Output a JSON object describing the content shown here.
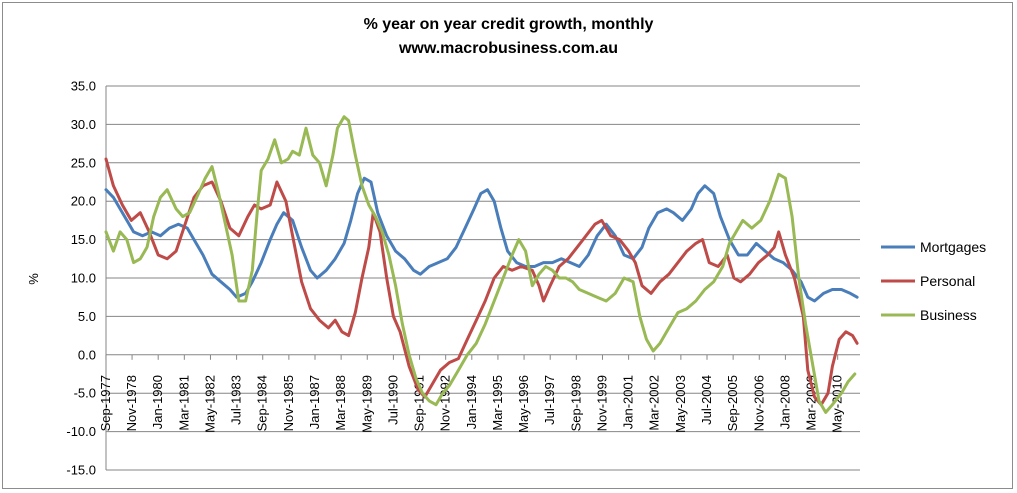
{
  "chart_data": {
    "type": "line",
    "title": "% year on year credit growth, monthly",
    "subtitle": "www.macrobusiness.com.au",
    "ylabel": "%",
    "xlabel": "",
    "ylim": [
      -15,
      35
    ],
    "yticks": [
      "35.0",
      "30.0",
      "25.0",
      "20.0",
      "15.0",
      "10.0",
      "5.0",
      "0.0",
      "-5.0",
      "-10.0",
      "-15.0"
    ],
    "xlim": [
      1977.67,
      2011.33
    ],
    "xticks": [
      "Sep-1977",
      "Nov-1978",
      "Jan-1980",
      "Mar-1981",
      "May-1982",
      "Jul-1983",
      "Sep-1984",
      "Nov-1985",
      "Jan-1987",
      "Mar-1988",
      "May-1989",
      "Jul-1990",
      "Sep-1991",
      "Nov-1992",
      "Jan-1994",
      "Mar-1995",
      "May-1996",
      "Jul-1997",
      "Sep-1998",
      "Nov-1999",
      "Jan-2001",
      "Mar-2002",
      "May-2003",
      "Jul-2004",
      "Sep-2005",
      "Nov-2006",
      "Jan-2008",
      "Mar-2009",
      "May-2010"
    ],
    "grid": "horizontal",
    "legend_position": "right",
    "series": [
      {
        "name": "Mortgages",
        "color": "#4a7ebb",
        "points": [
          [
            1977.67,
            21.5
          ],
          [
            1978.0,
            20.5
          ],
          [
            1978.4,
            18.5
          ],
          [
            1978.9,
            16.0
          ],
          [
            1979.3,
            15.5
          ],
          [
            1979.7,
            16.0
          ],
          [
            1980.1,
            15.5
          ],
          [
            1980.5,
            16.5
          ],
          [
            1980.9,
            17.0
          ],
          [
            1981.3,
            16.5
          ],
          [
            1981.6,
            15.0
          ],
          [
            1982.0,
            13.0
          ],
          [
            1982.4,
            10.5
          ],
          [
            1982.8,
            9.5
          ],
          [
            1983.2,
            8.5
          ],
          [
            1983.5,
            7.5
          ],
          [
            1983.9,
            8.0
          ],
          [
            1984.2,
            9.5
          ],
          [
            1984.6,
            12.0
          ],
          [
            1985.0,
            15.0
          ],
          [
            1985.3,
            17.0
          ],
          [
            1985.6,
            18.5
          ],
          [
            1986.0,
            17.5
          ],
          [
            1986.4,
            14.0
          ],
          [
            1986.8,
            11.0
          ],
          [
            1987.1,
            10.0
          ],
          [
            1987.5,
            11.0
          ],
          [
            1987.9,
            12.5
          ],
          [
            1988.3,
            14.5
          ],
          [
            1988.6,
            17.5
          ],
          [
            1988.9,
            21.0
          ],
          [
            1989.2,
            23.0
          ],
          [
            1989.5,
            22.5
          ],
          [
            1989.8,
            18.5
          ],
          [
            1990.2,
            15.5
          ],
          [
            1990.6,
            13.5
          ],
          [
            1991.0,
            12.5
          ],
          [
            1991.4,
            11.0
          ],
          [
            1991.7,
            10.5
          ],
          [
            1992.1,
            11.5
          ],
          [
            1992.5,
            12.0
          ],
          [
            1992.9,
            12.5
          ],
          [
            1993.3,
            14.0
          ],
          [
            1993.7,
            16.5
          ],
          [
            1994.1,
            19.0
          ],
          [
            1994.4,
            21.0
          ],
          [
            1994.7,
            21.5
          ],
          [
            1995.0,
            20.0
          ],
          [
            1995.3,
            16.5
          ],
          [
            1995.6,
            13.5
          ],
          [
            1996.0,
            12.0
          ],
          [
            1996.4,
            11.5
          ],
          [
            1996.8,
            11.5
          ],
          [
            1997.2,
            12.0
          ],
          [
            1997.6,
            12.0
          ],
          [
            1998.0,
            12.5
          ],
          [
            1998.4,
            12.0
          ],
          [
            1998.8,
            11.5
          ],
          [
            1999.2,
            13.0
          ],
          [
            1999.6,
            15.5
          ],
          [
            2000.0,
            17.0
          ],
          [
            2000.4,
            15.5
          ],
          [
            2000.8,
            13.0
          ],
          [
            2001.2,
            12.5
          ],
          [
            2001.6,
            14.0
          ],
          [
            2001.9,
            16.5
          ],
          [
            2002.3,
            18.5
          ],
          [
            2002.7,
            19.0
          ],
          [
            2003.0,
            18.5
          ],
          [
            2003.4,
            17.5
          ],
          [
            2003.8,
            19.0
          ],
          [
            2004.1,
            21.0
          ],
          [
            2004.4,
            22.0
          ],
          [
            2004.8,
            21.0
          ],
          [
            2005.1,
            18.0
          ],
          [
            2005.5,
            15.0
          ],
          [
            2005.9,
            13.0
          ],
          [
            2006.3,
            13.0
          ],
          [
            2006.7,
            14.5
          ],
          [
            2007.1,
            13.5
          ],
          [
            2007.5,
            12.5
          ],
          [
            2007.9,
            12.0
          ],
          [
            2008.3,
            11.0
          ],
          [
            2008.7,
            9.5
          ],
          [
            2009.0,
            7.5
          ],
          [
            2009.3,
            7.0
          ],
          [
            2009.7,
            8.0
          ],
          [
            2010.1,
            8.5
          ],
          [
            2010.5,
            8.5
          ],
          [
            2010.9,
            8.0
          ],
          [
            2011.2,
            7.5
          ]
        ]
      },
      {
        "name": "Personal",
        "color": "#be4b48",
        "points": [
          [
            1977.67,
            25.5
          ],
          [
            1978.0,
            22.0
          ],
          [
            1978.4,
            19.5
          ],
          [
            1978.8,
            17.5
          ],
          [
            1979.2,
            18.5
          ],
          [
            1979.6,
            16.0
          ],
          [
            1980.0,
            13.0
          ],
          [
            1980.4,
            12.5
          ],
          [
            1980.8,
            13.5
          ],
          [
            1981.2,
            17.0
          ],
          [
            1981.6,
            20.5
          ],
          [
            1982.0,
            22.0
          ],
          [
            1982.4,
            22.5
          ],
          [
            1982.8,
            20.0
          ],
          [
            1983.2,
            16.5
          ],
          [
            1983.6,
            15.5
          ],
          [
            1984.0,
            18.0
          ],
          [
            1984.3,
            19.5
          ],
          [
            1984.6,
            19.0
          ],
          [
            1985.0,
            19.5
          ],
          [
            1985.3,
            22.5
          ],
          [
            1985.7,
            20.0
          ],
          [
            1986.0,
            15.5
          ],
          [
            1986.4,
            9.5
          ],
          [
            1986.8,
            6.0
          ],
          [
            1987.2,
            4.5
          ],
          [
            1987.6,
            3.5
          ],
          [
            1987.9,
            4.5
          ],
          [
            1988.2,
            3.0
          ],
          [
            1988.5,
            2.5
          ],
          [
            1988.8,
            5.5
          ],
          [
            1989.1,
            10.0
          ],
          [
            1989.4,
            14.0
          ],
          [
            1989.6,
            18.5
          ],
          [
            1989.9,
            16.0
          ],
          [
            1990.2,
            10.0
          ],
          [
            1990.5,
            5.0
          ],
          [
            1990.8,
            3.0
          ],
          [
            1991.2,
            -1.5
          ],
          [
            1991.6,
            -4.5
          ],
          [
            1991.9,
            -5.5
          ],
          [
            1992.2,
            -4.0
          ],
          [
            1992.6,
            -2.0
          ],
          [
            1993.0,
            -1.0
          ],
          [
            1993.4,
            -0.5
          ],
          [
            1993.8,
            2.0
          ],
          [
            1994.2,
            4.5
          ],
          [
            1994.6,
            7.0
          ],
          [
            1995.0,
            10.0
          ],
          [
            1995.4,
            11.5
          ],
          [
            1995.8,
            11.0
          ],
          [
            1996.2,
            11.5
          ],
          [
            1996.7,
            11.0
          ],
          [
            1997.0,
            9.0
          ],
          [
            1997.2,
            7.0
          ],
          [
            1997.5,
            9.0
          ],
          [
            1997.9,
            11.5
          ],
          [
            1998.3,
            12.5
          ],
          [
            1998.7,
            14.0
          ],
          [
            1999.1,
            15.5
          ],
          [
            1999.5,
            17.0
          ],
          [
            1999.8,
            17.5
          ],
          [
            2000.2,
            15.5
          ],
          [
            2000.6,
            15.0
          ],
          [
            2001.0,
            13.5
          ],
          [
            2001.3,
            12.0
          ],
          [
            2001.6,
            9.0
          ],
          [
            2002.0,
            8.0
          ],
          [
            2002.4,
            9.5
          ],
          [
            2002.8,
            10.5
          ],
          [
            2003.2,
            12.0
          ],
          [
            2003.6,
            13.5
          ],
          [
            2004.0,
            14.5
          ],
          [
            2004.3,
            15.0
          ],
          [
            2004.6,
            12.0
          ],
          [
            2005.0,
            11.5
          ],
          [
            2005.4,
            13.0
          ],
          [
            2005.7,
            10.0
          ],
          [
            2006.0,
            9.5
          ],
          [
            2006.4,
            10.5
          ],
          [
            2006.8,
            12.0
          ],
          [
            2007.2,
            13.0
          ],
          [
            2007.5,
            14.0
          ],
          [
            2007.7,
            16.0
          ],
          [
            2008.0,
            13.0
          ],
          [
            2008.4,
            10.0
          ],
          [
            2008.8,
            5.0
          ],
          [
            2009.0,
            -2.0
          ],
          [
            2009.3,
            -5.5
          ],
          [
            2009.6,
            -6.5
          ],
          [
            2009.9,
            -5.0
          ],
          [
            2010.1,
            -1.5
          ],
          [
            2010.4,
            2.0
          ],
          [
            2010.7,
            3.0
          ],
          [
            2011.0,
            2.5
          ],
          [
            2011.2,
            1.5
          ]
        ]
      },
      {
        "name": "Business",
        "color": "#98b954",
        "points": [
          [
            1977.67,
            16.0
          ],
          [
            1978.0,
            13.5
          ],
          [
            1978.3,
            16.0
          ],
          [
            1978.6,
            15.0
          ],
          [
            1978.9,
            12.0
          ],
          [
            1979.2,
            12.5
          ],
          [
            1979.5,
            14.0
          ],
          [
            1979.8,
            18.0
          ],
          [
            1980.1,
            20.5
          ],
          [
            1980.4,
            21.5
          ],
          [
            1980.8,
            19.0
          ],
          [
            1981.1,
            18.0
          ],
          [
            1981.4,
            18.5
          ],
          [
            1981.8,
            21.0
          ],
          [
            1982.1,
            23.0
          ],
          [
            1982.4,
            24.5
          ],
          [
            1982.7,
            21.0
          ],
          [
            1983.0,
            17.0
          ],
          [
            1983.3,
            13.0
          ],
          [
            1983.6,
            7.0
          ],
          [
            1983.9,
            7.0
          ],
          [
            1984.2,
            11.0
          ],
          [
            1984.4,
            18.0
          ],
          [
            1984.6,
            24.0
          ],
          [
            1984.9,
            25.5
          ],
          [
            1985.2,
            28.0
          ],
          [
            1985.5,
            25.0
          ],
          [
            1985.8,
            25.5
          ],
          [
            1986.0,
            26.5
          ],
          [
            1986.3,
            26.0
          ],
          [
            1986.6,
            29.5
          ],
          [
            1986.9,
            26.0
          ],
          [
            1987.2,
            25.0
          ],
          [
            1987.5,
            22.0
          ],
          [
            1987.8,
            26.0
          ],
          [
            1988.0,
            29.5
          ],
          [
            1988.3,
            31.0
          ],
          [
            1988.5,
            30.5
          ],
          [
            1988.8,
            26.0
          ],
          [
            1989.1,
            22.0
          ],
          [
            1989.4,
            19.5
          ],
          [
            1989.7,
            18.0
          ],
          [
            1990.0,
            16.0
          ],
          [
            1990.3,
            13.0
          ],
          [
            1990.6,
            9.0
          ],
          [
            1990.9,
            4.0
          ],
          [
            1991.2,
            0.0
          ],
          [
            1991.5,
            -3.0
          ],
          [
            1991.8,
            -5.0
          ],
          [
            1992.1,
            -6.0
          ],
          [
            1992.4,
            -6.5
          ],
          [
            1992.7,
            -5.0
          ],
          [
            1993.0,
            -4.0
          ],
          [
            1993.4,
            -2.0
          ],
          [
            1993.8,
            0.0
          ],
          [
            1994.2,
            1.5
          ],
          [
            1994.6,
            4.0
          ],
          [
            1995.0,
            7.0
          ],
          [
            1995.4,
            10.0
          ],
          [
            1995.8,
            13.0
          ],
          [
            1996.1,
            15.0
          ],
          [
            1996.4,
            13.5
          ],
          [
            1996.7,
            9.0
          ],
          [
            1997.0,
            10.5
          ],
          [
            1997.3,
            11.5
          ],
          [
            1997.6,
            11.0
          ],
          [
            1997.9,
            10.0
          ],
          [
            1998.2,
            10.0
          ],
          [
            1998.5,
            9.5
          ],
          [
            1998.8,
            8.5
          ],
          [
            1999.2,
            8.0
          ],
          [
            1999.6,
            7.5
          ],
          [
            2000.0,
            7.0
          ],
          [
            2000.4,
            8.0
          ],
          [
            2000.8,
            10.0
          ],
          [
            2001.2,
            9.5
          ],
          [
            2001.5,
            5.0
          ],
          [
            2001.8,
            2.0
          ],
          [
            2002.1,
            0.5
          ],
          [
            2002.4,
            1.5
          ],
          [
            2002.8,
            3.5
          ],
          [
            2003.2,
            5.5
          ],
          [
            2003.6,
            6.0
          ],
          [
            2004.0,
            7.0
          ],
          [
            2004.4,
            8.5
          ],
          [
            2004.8,
            9.5
          ],
          [
            2005.2,
            11.5
          ],
          [
            2005.5,
            14.5
          ],
          [
            2005.8,
            16.0
          ],
          [
            2006.1,
            17.5
          ],
          [
            2006.5,
            16.5
          ],
          [
            2006.9,
            17.5
          ],
          [
            2007.3,
            20.0
          ],
          [
            2007.7,
            23.5
          ],
          [
            2008.0,
            23.0
          ],
          [
            2008.3,
            18.0
          ],
          [
            2008.6,
            10.0
          ],
          [
            2008.9,
            4.0
          ],
          [
            2009.2,
            -1.0
          ],
          [
            2009.5,
            -6.0
          ],
          [
            2009.8,
            -7.5
          ],
          [
            2010.1,
            -6.5
          ],
          [
            2010.5,
            -5.0
          ],
          [
            2010.8,
            -3.5
          ],
          [
            2011.1,
            -2.5
          ]
        ]
      }
    ]
  }
}
